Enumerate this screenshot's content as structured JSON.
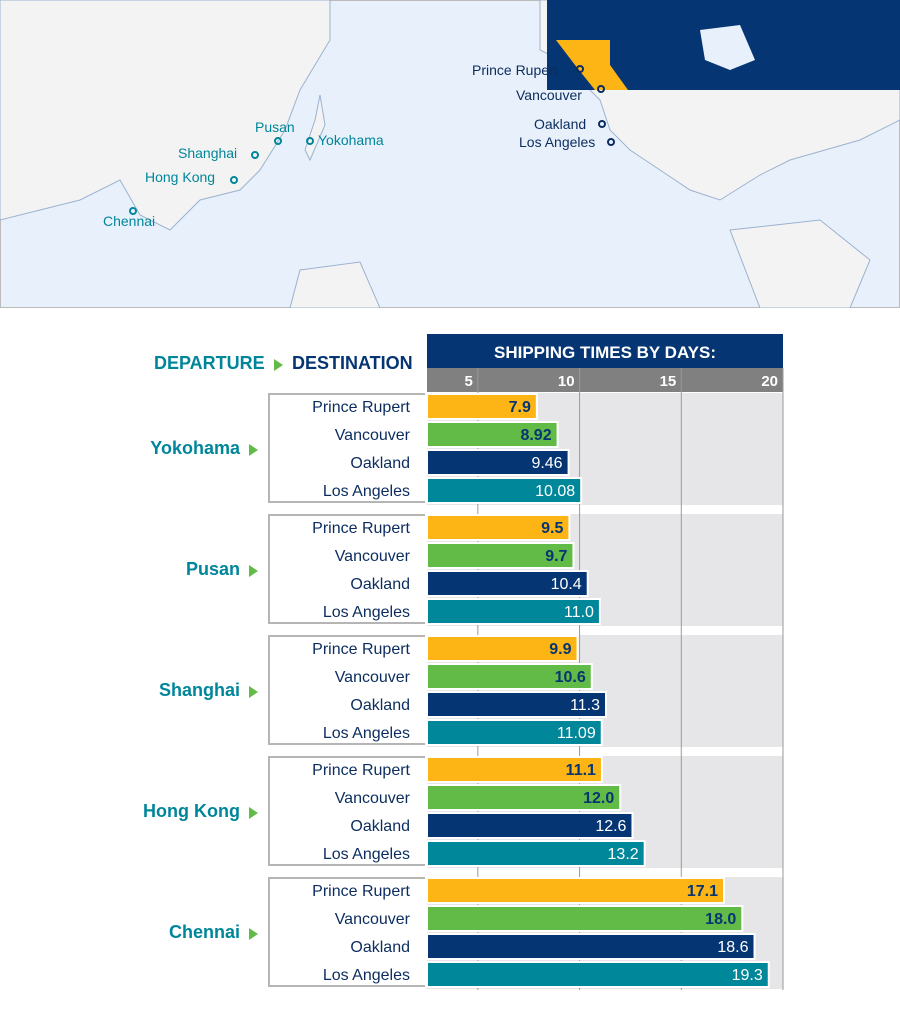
{
  "map": {
    "origins": [
      "Yokohama",
      "Pusan",
      "Shanghai",
      "Hong Kong",
      "Chennai"
    ],
    "destinations": [
      "Prince Rupert",
      "Vancouver",
      "Oakland",
      "Los Angeles"
    ],
    "colors": {
      "ocean": "#e8f1fb",
      "land": "#f3f3f4",
      "canada": "#063573",
      "british_columbia": "#fdb515",
      "origin_text": "#00869a",
      "destination_text": "#0b2c5e"
    }
  },
  "legend": {
    "departure": "DEPARTURE",
    "destination": "DESTINATION"
  },
  "chart_data": {
    "type": "bar",
    "orientation": "horizontal",
    "title": "SHIPPING TIMES BY DAYS:",
    "xticks": [
      5,
      10,
      15,
      20
    ],
    "xlim": [
      2.5,
      20
    ],
    "grid": true,
    "groups": [
      "Yokohama",
      "Pusan",
      "Shanghai",
      "Hong Kong",
      "Chennai"
    ],
    "categories": [
      "Prince Rupert",
      "Vancouver",
      "Oakland",
      "Los Angeles"
    ],
    "colors": [
      "#fdb515",
      "#62bb46",
      "#063573",
      "#00879a"
    ],
    "values": [
      [
        "7.9",
        "8.92",
        "9.46",
        "10.08"
      ],
      [
        "9.5",
        "9.7",
        "10.4",
        "11.0"
      ],
      [
        "9.9",
        "10.6",
        "11.3",
        "11.09"
      ],
      [
        "11.1",
        "12.0",
        "12.6",
        "13.2"
      ],
      [
        "17.1",
        "18.0",
        "18.6",
        "19.3"
      ]
    ]
  }
}
